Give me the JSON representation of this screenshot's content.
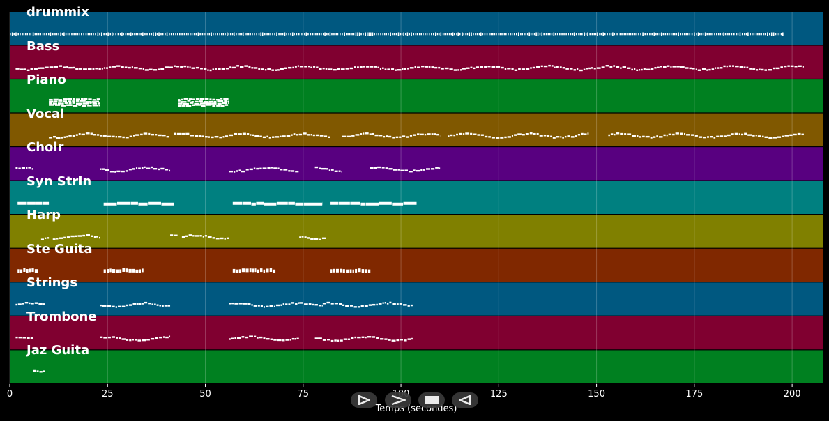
{
  "colors": {
    "blue": "#005880",
    "crimson": "#800030",
    "green": "#008020",
    "orange": "#805800",
    "purple": "#580080",
    "teal": "#008080",
    "olive": "#808000",
    "rust": "#802800",
    "background": "#000000",
    "notes": "#ffffff"
  },
  "chart_data": {
    "type": "piano-roll",
    "xlabel": "Temps (secondes)",
    "xlim": [
      0,
      208
    ],
    "xticks": [
      "0",
      "25",
      "50",
      "75",
      "100",
      "125",
      "150",
      "175",
      "200"
    ],
    "grid": true,
    "tracks": [
      {
        "name": "drummix",
        "color": "blue",
        "segments": [
          [
            0,
            198
          ]
        ],
        "style": "drums"
      },
      {
        "name": "Bass",
        "color": "crimson",
        "segments": [
          [
            1.5,
            203
          ]
        ],
        "style": "wave"
      },
      {
        "name": "Piano",
        "color": "green",
        "segments": [
          [
            10,
            23
          ],
          [
            43,
            56
          ]
        ],
        "style": "chords"
      },
      {
        "name": "Vocal",
        "color": "orange",
        "segments": [
          [
            10,
            41
          ],
          [
            42,
            82
          ],
          [
            85,
            110
          ],
          [
            112,
            148
          ],
          [
            153,
            203
          ]
        ],
        "style": "wave"
      },
      {
        "name": "Choir",
        "color": "purple",
        "segments": [
          [
            1.5,
            6
          ],
          [
            23,
            41
          ],
          [
            56,
            74
          ],
          [
            78,
            85
          ],
          [
            92,
            110
          ]
        ],
        "style": "wave"
      },
      {
        "name": "Syn Strin",
        "color": "teal",
        "segments": [
          [
            2,
            10
          ],
          [
            24,
            42
          ],
          [
            57,
            80
          ],
          [
            82,
            104
          ]
        ],
        "style": "block"
      },
      {
        "name": "Harp",
        "color": "olive",
        "segments": [
          [
            8,
            10
          ],
          [
            11,
            23
          ],
          [
            41,
            43
          ],
          [
            44,
            56
          ],
          [
            74,
            81
          ]
        ],
        "style": "wave"
      },
      {
        "name": "Ste Guita",
        "color": "rust",
        "segments": [
          [
            2,
            7
          ],
          [
            24,
            34
          ],
          [
            57,
            68
          ],
          [
            82,
            92
          ]
        ],
        "style": "dash"
      },
      {
        "name": "Strings",
        "color": "blue",
        "segments": [
          [
            1.5,
            9
          ],
          [
            23,
            41
          ],
          [
            56,
            74
          ],
          [
            74,
            80
          ],
          [
            80,
            103
          ]
        ],
        "style": "wave"
      },
      {
        "name": "Trombone",
        "color": "crimson",
        "segments": [
          [
            1.5,
            6
          ],
          [
            23,
            41
          ],
          [
            56,
            74
          ],
          [
            78,
            103
          ]
        ],
        "style": "wave"
      },
      {
        "name": "Jaz Guita",
        "color": "green",
        "segments": [
          [
            6,
            9
          ]
        ],
        "style": "wave"
      }
    ]
  },
  "controls": [
    {
      "icon": "play-icon"
    },
    {
      "icon": "forward-icon"
    },
    {
      "icon": "stop-icon"
    },
    {
      "icon": "rewind-icon"
    }
  ]
}
